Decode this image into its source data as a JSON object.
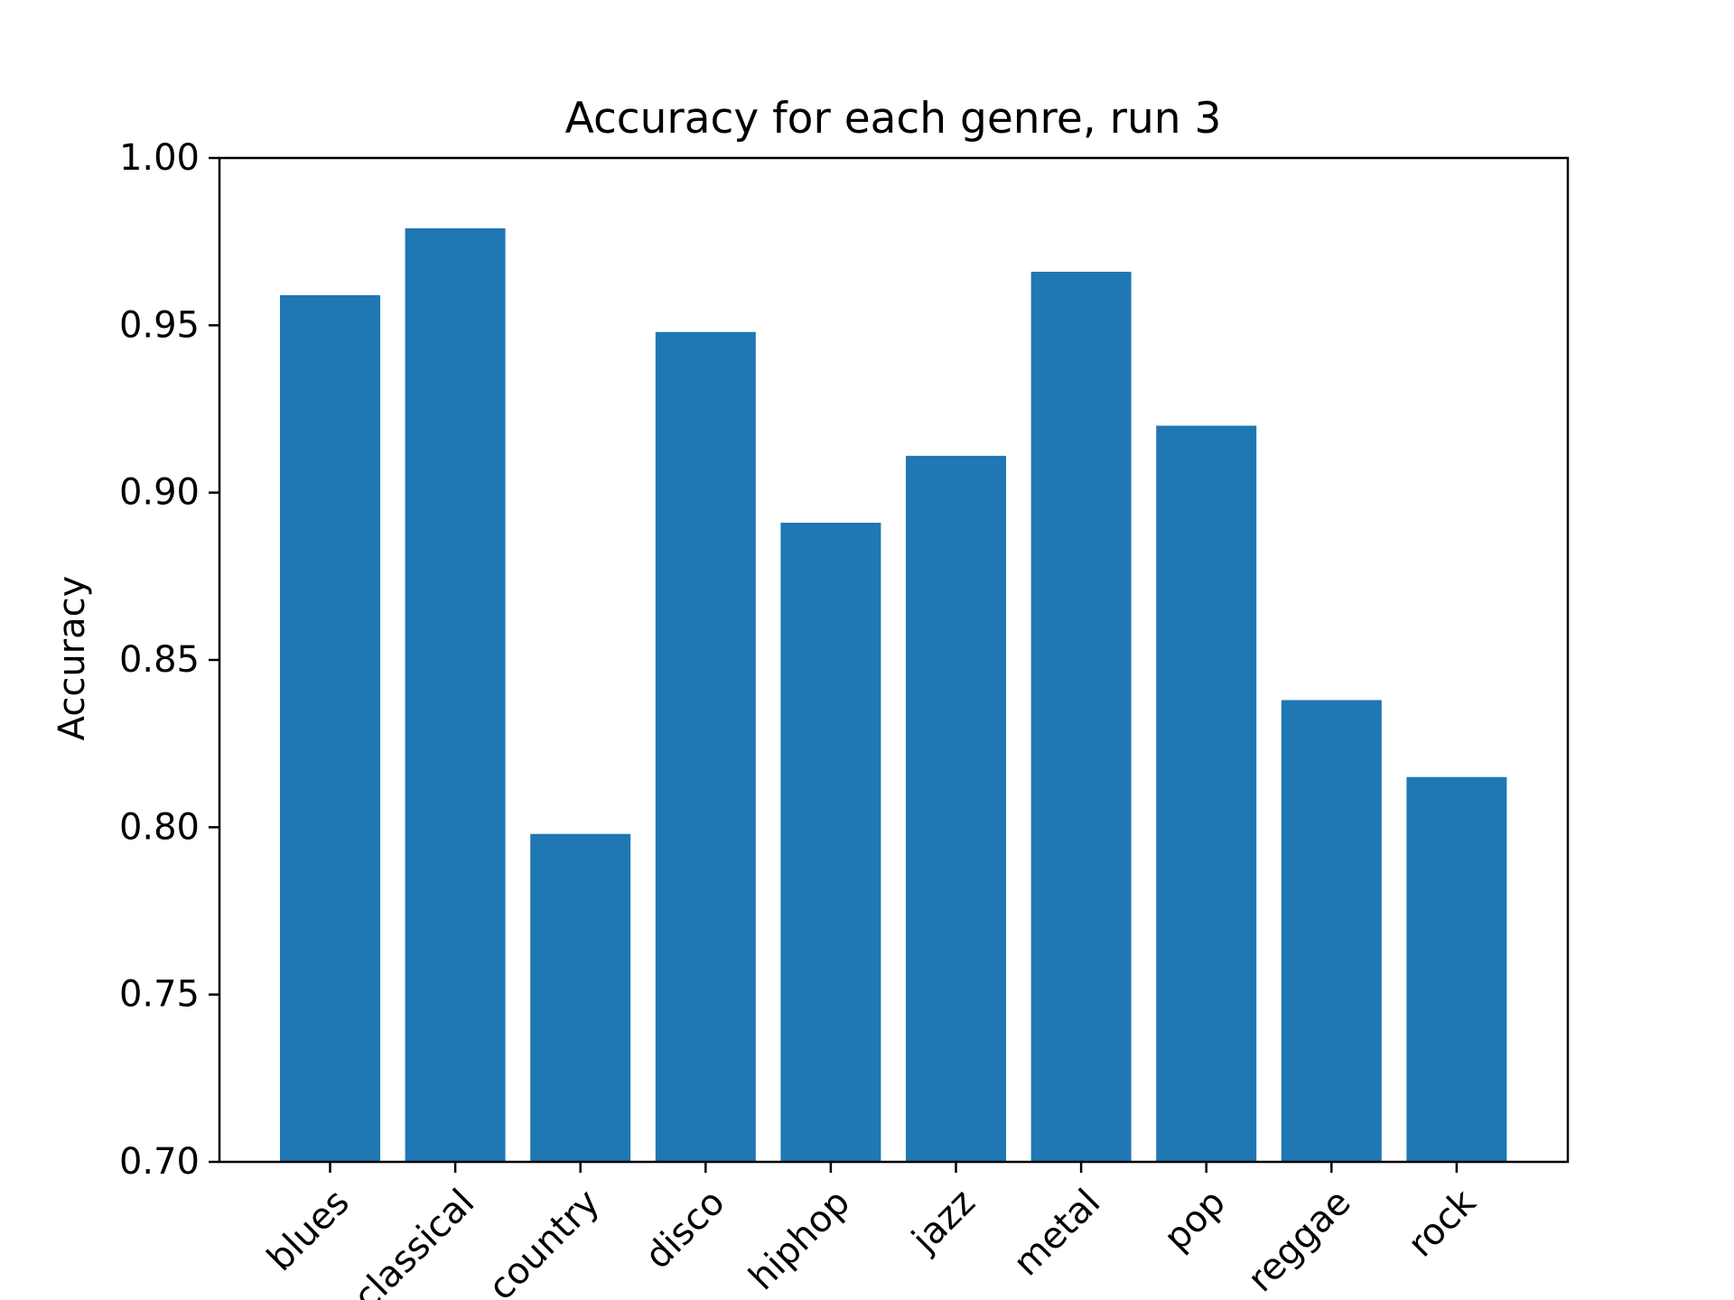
{
  "chart_data": {
    "type": "bar",
    "title": "Accuracy for each genre, run 3",
    "xlabel": "",
    "ylabel": "Accuracy",
    "categories": [
      "blues",
      "classical",
      "country",
      "disco",
      "hiphop",
      "jazz",
      "metal",
      "pop",
      "reggae",
      "rock"
    ],
    "values": [
      0.959,
      0.979,
      0.798,
      0.948,
      0.891,
      0.911,
      0.966,
      0.92,
      0.838,
      0.815
    ],
    "ylim": [
      0.7,
      1.0
    ],
    "yticks": [
      "0.70",
      "0.75",
      "0.80",
      "0.85",
      "0.90",
      "0.95",
      "1.00"
    ],
    "bar_color": "#1f77b4",
    "grid": false,
    "legend": "none",
    "xtick_rotation": "45"
  }
}
